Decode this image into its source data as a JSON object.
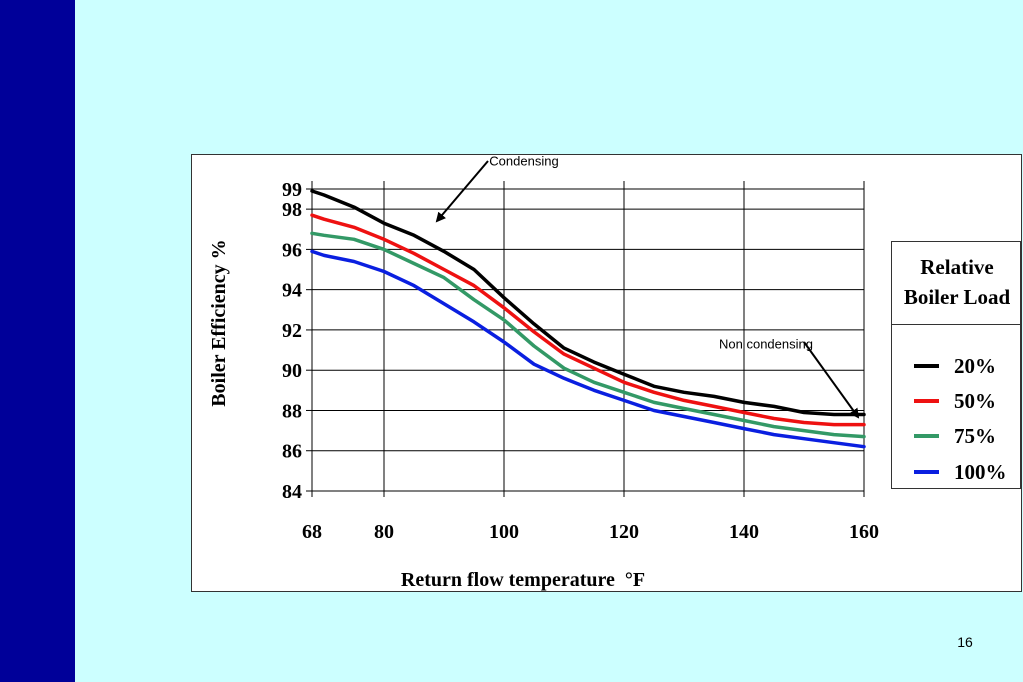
{
  "slide": {
    "number": "16"
  },
  "legend": {
    "title_line1": "Relative",
    "title_line2": "Boiler Load",
    "items": [
      {
        "label": "20%",
        "color": "#000000"
      },
      {
        "label": "50%",
        "color": "#ee1111"
      },
      {
        "label": "75%",
        "color": "#339966"
      },
      {
        "label": "100%",
        "color": "#0a1fe0"
      }
    ]
  },
  "annotations": {
    "condensing": "Condensing",
    "non_condensing": "Non condensing"
  },
  "chart_data": {
    "type": "line",
    "title": "",
    "xlabel": "Return flow temperature  °F",
    "ylabel": "Boiler Efficiency   %",
    "x_ticks": [
      "68",
      "80",
      "100",
      "120",
      "140",
      "160"
    ],
    "y_ticks": [
      "84",
      "86",
      "88",
      "90",
      "92",
      "94",
      "96",
      "98",
      "99"
    ],
    "xlim": [
      68,
      160
    ],
    "ylim": [
      84,
      99
    ],
    "grid": true,
    "legend_position": "right",
    "x": [
      68,
      70,
      75,
      80,
      85,
      90,
      95,
      100,
      105,
      110,
      115,
      120,
      125,
      130,
      135,
      140,
      145,
      150,
      155,
      160
    ],
    "series": [
      {
        "name": "20%",
        "color": "#000000",
        "values": [
          98.9,
          98.7,
          98.1,
          97.3,
          96.7,
          95.9,
          95.0,
          93.6,
          92.3,
          91.1,
          90.4,
          89.8,
          89.2,
          88.9,
          88.7,
          88.4,
          88.2,
          87.9,
          87.8,
          87.8
        ]
      },
      {
        "name": "50%",
        "color": "#ee1111",
        "values": [
          97.7,
          97.5,
          97.1,
          96.5,
          95.8,
          95.0,
          94.2,
          93.1,
          91.9,
          90.8,
          90.1,
          89.4,
          88.9,
          88.5,
          88.2,
          87.9,
          87.6,
          87.4,
          87.3,
          87.3
        ]
      },
      {
        "name": "75%",
        "color": "#339966",
        "values": [
          96.8,
          96.7,
          96.5,
          96.0,
          95.3,
          94.6,
          93.5,
          92.5,
          91.2,
          90.1,
          89.4,
          88.9,
          88.4,
          88.1,
          87.8,
          87.5,
          87.2,
          87.0,
          86.8,
          86.7
        ]
      },
      {
        "name": "100%",
        "color": "#0a1fe0",
        "values": [
          95.9,
          95.7,
          95.4,
          94.9,
          94.2,
          93.3,
          92.4,
          91.4,
          90.3,
          89.6,
          89.0,
          88.5,
          88.0,
          87.7,
          87.4,
          87.1,
          86.8,
          86.6,
          86.4,
          86.2
        ]
      }
    ]
  }
}
